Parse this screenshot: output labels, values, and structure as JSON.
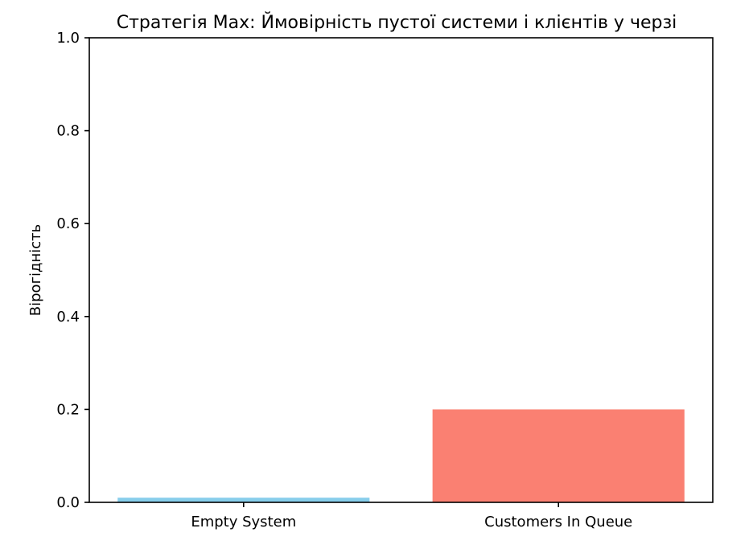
{
  "chart_data": {
    "type": "bar",
    "title": "Стратегія Max: Ймовірність пустої системи і клієнтів у черзі",
    "xlabel": "",
    "ylabel": "Вірогідність",
    "categories": [
      "Empty System",
      "Customers In Queue"
    ],
    "values": [
      0.01,
      0.2
    ],
    "colors": [
      "#87ceeb",
      "#fa8072"
    ],
    "ylim": [
      0.0,
      1.0
    ],
    "yticks": [
      "0.0",
      "0.2",
      "0.4",
      "0.6",
      "0.8",
      "1.0"
    ],
    "grid": false
  }
}
